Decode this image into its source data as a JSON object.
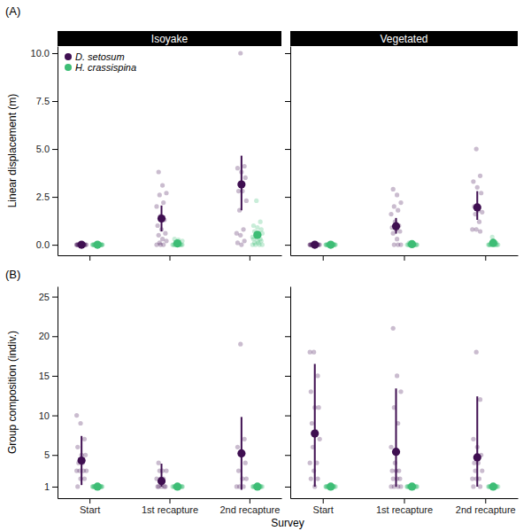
{
  "chart_data": [
    {
      "type": "scatter",
      "tag": "(A)",
      "title": "Isoyake",
      "y_label": "Linear displacement (m)",
      "categories": [
        "Start",
        "1st recapture",
        "2nd recapture"
      ],
      "ylim": [
        -0.55,
        10.37
      ],
      "yticks": [
        {
          "value": 0,
          "label": "0.0"
        },
        {
          "value": 2.5,
          "label": "2.5"
        },
        {
          "value": 5,
          "label": "5.0"
        },
        {
          "value": 7.5,
          "label": "7.5"
        },
        {
          "value": 10,
          "label": "10.0"
        }
      ],
      "tick_labels": "y",
      "legend": "top-left",
      "series": [
        {
          "name": "D. setosum",
          "color": "#3f0f51",
          "values": [
            0,
            1.37,
            3.15
          ],
          "ci_low": [
            0,
            0.7,
            1.8
          ],
          "ci_high": [
            0,
            2.05,
            4.65
          ],
          "raw": [
            [
              0,
              0,
              0,
              0,
              0,
              0,
              0,
              0,
              0,
              0,
              0,
              0,
              0,
              0,
              0
            ],
            [
              3.8,
              3.1,
              2.7,
              2.6,
              2.2,
              2.0,
              1.5,
              1.3,
              1.0,
              0.8,
              0.6,
              0.5,
              0.3,
              0.2,
              0.1,
              0,
              0,
              0
            ],
            [
              10.0,
              4.1,
              4.0,
              3.8,
              3.5,
              2.8,
              2.8,
              2.3,
              1.8,
              0.8,
              0.6,
              0.5,
              0.2,
              0.1,
              0
            ]
          ]
        },
        {
          "name": "H. crassispina",
          "color": "#3dbd75",
          "values": [
            0,
            0.07,
            0.52
          ],
          "ci_low": [
            0,
            0.02,
            0.38
          ],
          "ci_high": [
            0,
            0.12,
            0.66
          ],
          "raw": [
            [
              0,
              0,
              0,
              0,
              0,
              0,
              0,
              0,
              0,
              0,
              0,
              0,
              0,
              0,
              0,
              0,
              0,
              0,
              0,
              0
            ],
            [
              0.3,
              0.25,
              0.2,
              0.1,
              0.05,
              0,
              0,
              0,
              0,
              0,
              0,
              0,
              0,
              0,
              0,
              0
            ],
            [
              2.3,
              1.2,
              1.0,
              0.9,
              0.8,
              0.7,
              0.6,
              0.6,
              0.5,
              0.5,
              0.4,
              0.4,
              0.3,
              0.3,
              0.2,
              0.2,
              0.1,
              0.1,
              0,
              0,
              0,
              0
            ]
          ]
        }
      ]
    },
    {
      "type": "scatter",
      "title": "Vegetated",
      "categories": [
        "Start",
        "1st recapture",
        "2nd recapture"
      ],
      "ylim": [
        -0.55,
        10.37
      ],
      "yticks": [
        {
          "value": 0,
          "label": "0.0"
        },
        {
          "value": 2.5,
          "label": "2.5"
        },
        {
          "value": 5,
          "label": "5.0"
        },
        {
          "value": 7.5,
          "label": "7.5"
        },
        {
          "value": 10,
          "label": "10.0"
        }
      ],
      "tick_labels": false,
      "series": [
        {
          "name": "D. setosum",
          "color": "#3f0f51",
          "values": [
            0,
            0.97,
            1.95
          ],
          "ci_low": [
            0,
            0.58,
            1.3
          ],
          "ci_high": [
            0,
            1.4,
            2.8
          ],
          "raw": [
            [
              0,
              0,
              0,
              0,
              0,
              0,
              0,
              0,
              0,
              0,
              0,
              0,
              0,
              0,
              0,
              0
            ],
            [
              2.9,
              2.6,
              2.2,
              2.0,
              1.8,
              1.6,
              1.2,
              1.0,
              0.9,
              0.8,
              0.7,
              0.6,
              0.3,
              0,
              0,
              0
            ],
            [
              5.0,
              3.6,
              3.3,
              3.0,
              2.7,
              2.0,
              1.8,
              1.7,
              1.6,
              1.2,
              0.8,
              0.8,
              0.7
            ]
          ]
        },
        {
          "name": "H. crassispina",
          "color": "#3dbd75",
          "values": [
            0,
            0.03,
            0.1
          ],
          "ci_low": [
            0,
            0,
            0
          ],
          "ci_high": [
            0,
            0.08,
            0.3
          ],
          "raw": [
            [
              0,
              0,
              0,
              0,
              0,
              0,
              0,
              0,
              0,
              0,
              0,
              0,
              0,
              0,
              0,
              0,
              0,
              0
            ],
            [
              0.1,
              0,
              0,
              0,
              0,
              0,
              0,
              0,
              0,
              0,
              0,
              0,
              0,
              0,
              0,
              0
            ],
            [
              0.4,
              0.1,
              0,
              0,
              0,
              0,
              0,
              0,
              0,
              0,
              0,
              0,
              0,
              0
            ]
          ]
        }
      ]
    },
    {
      "type": "scatter",
      "tag": "(B)",
      "y_label": "Group composition (indiv.)",
      "x_label": "Survey",
      "categories": [
        "Start",
        "1st recapture",
        "2nd recapture"
      ],
      "ylim": [
        -0.46,
        26.3
      ],
      "yticks": [
        1,
        5,
        10,
        15,
        20,
        25
      ],
      "series": [
        {
          "name": "D. setosum",
          "color": "#3f0f51",
          "values": [
            4.3,
            1.7,
            5.2
          ],
          "ci_low": [
            1.2,
            1.0,
            0.6
          ],
          "ci_high": [
            7.4,
            3.9,
            9.8
          ],
          "raw": [
            [
              10,
              9,
              7,
              6,
              5,
              5,
              4,
              4,
              3,
              3,
              3,
              3,
              2,
              2,
              1
            ],
            [
              4,
              3,
              3,
              3,
              2,
              2,
              2,
              1,
              1,
              1,
              1,
              1
            ],
            [
              19,
              7,
              6,
              5,
              4,
              3,
              2,
              2,
              1,
              1,
              1
            ]
          ]
        },
        {
          "name": "H. crassispina",
          "color": "#3dbd75",
          "values": [
            1,
            1,
            1
          ],
          "ci_low": [
            1,
            1,
            1
          ],
          "ci_high": [
            1,
            1,
            1
          ],
          "raw": [
            [
              1,
              1,
              1,
              1,
              1,
              1,
              1,
              1,
              1,
              1,
              1,
              1,
              1,
              1,
              1,
              1,
              1,
              1
            ],
            [
              1,
              1,
              1,
              1,
              1,
              1,
              1,
              1,
              1,
              1,
              1,
              1,
              1,
              1,
              1,
              1
            ],
            [
              1,
              1,
              1,
              1,
              1,
              1,
              1,
              1,
              1,
              1,
              1,
              1,
              1,
              1
            ]
          ]
        }
      ]
    },
    {
      "type": "scatter",
      "categories": [
        "Start",
        "1st recapture",
        "2nd recapture"
      ],
      "ylim": [
        -0.46,
        26.3
      ],
      "yticks": [
        1,
        5,
        10,
        15,
        20,
        25
      ],
      "tick_labels": "x",
      "series": [
        {
          "name": "D. setosum",
          "color": "#3f0f51",
          "values": [
            7.7,
            5.4,
            4.7
          ],
          "ci_low": [
            1,
            1,
            1
          ],
          "ci_high": [
            16.5,
            13.4,
            12.4
          ],
          "raw": [
            [
              18,
              18,
              15,
              13,
              11,
              11,
              9,
              8,
              7,
              6,
              4,
              4,
              3,
              2,
              2,
              1
            ],
            [
              21,
              15,
              13,
              11,
              9,
              6,
              4,
              3,
              3,
              3,
              2,
              2,
              2,
              1,
              1,
              1,
              1
            ],
            [
              18,
              12,
              7,
              6,
              5,
              4,
              4,
              3,
              3,
              2,
              2,
              2,
              1,
              1
            ]
          ]
        },
        {
          "name": "H. crassispina",
          "color": "#3dbd75",
          "values": [
            1,
            1,
            1
          ],
          "ci_low": [
            1,
            1,
            1
          ],
          "ci_high": [
            1,
            1,
            1
          ],
          "raw": [
            [
              1,
              1,
              1,
              1,
              1,
              1,
              1,
              1,
              1,
              1,
              1,
              1,
              1,
              1,
              1,
              1
            ],
            [
              1,
              1,
              1,
              1,
              1,
              1,
              1,
              1,
              1,
              1,
              1,
              1,
              1,
              1,
              1,
              1,
              1
            ],
            [
              1,
              1,
              1,
              1,
              1,
              1,
              1,
              1,
              1,
              1,
              1,
              1,
              1,
              1
            ]
          ]
        }
      ]
    }
  ]
}
